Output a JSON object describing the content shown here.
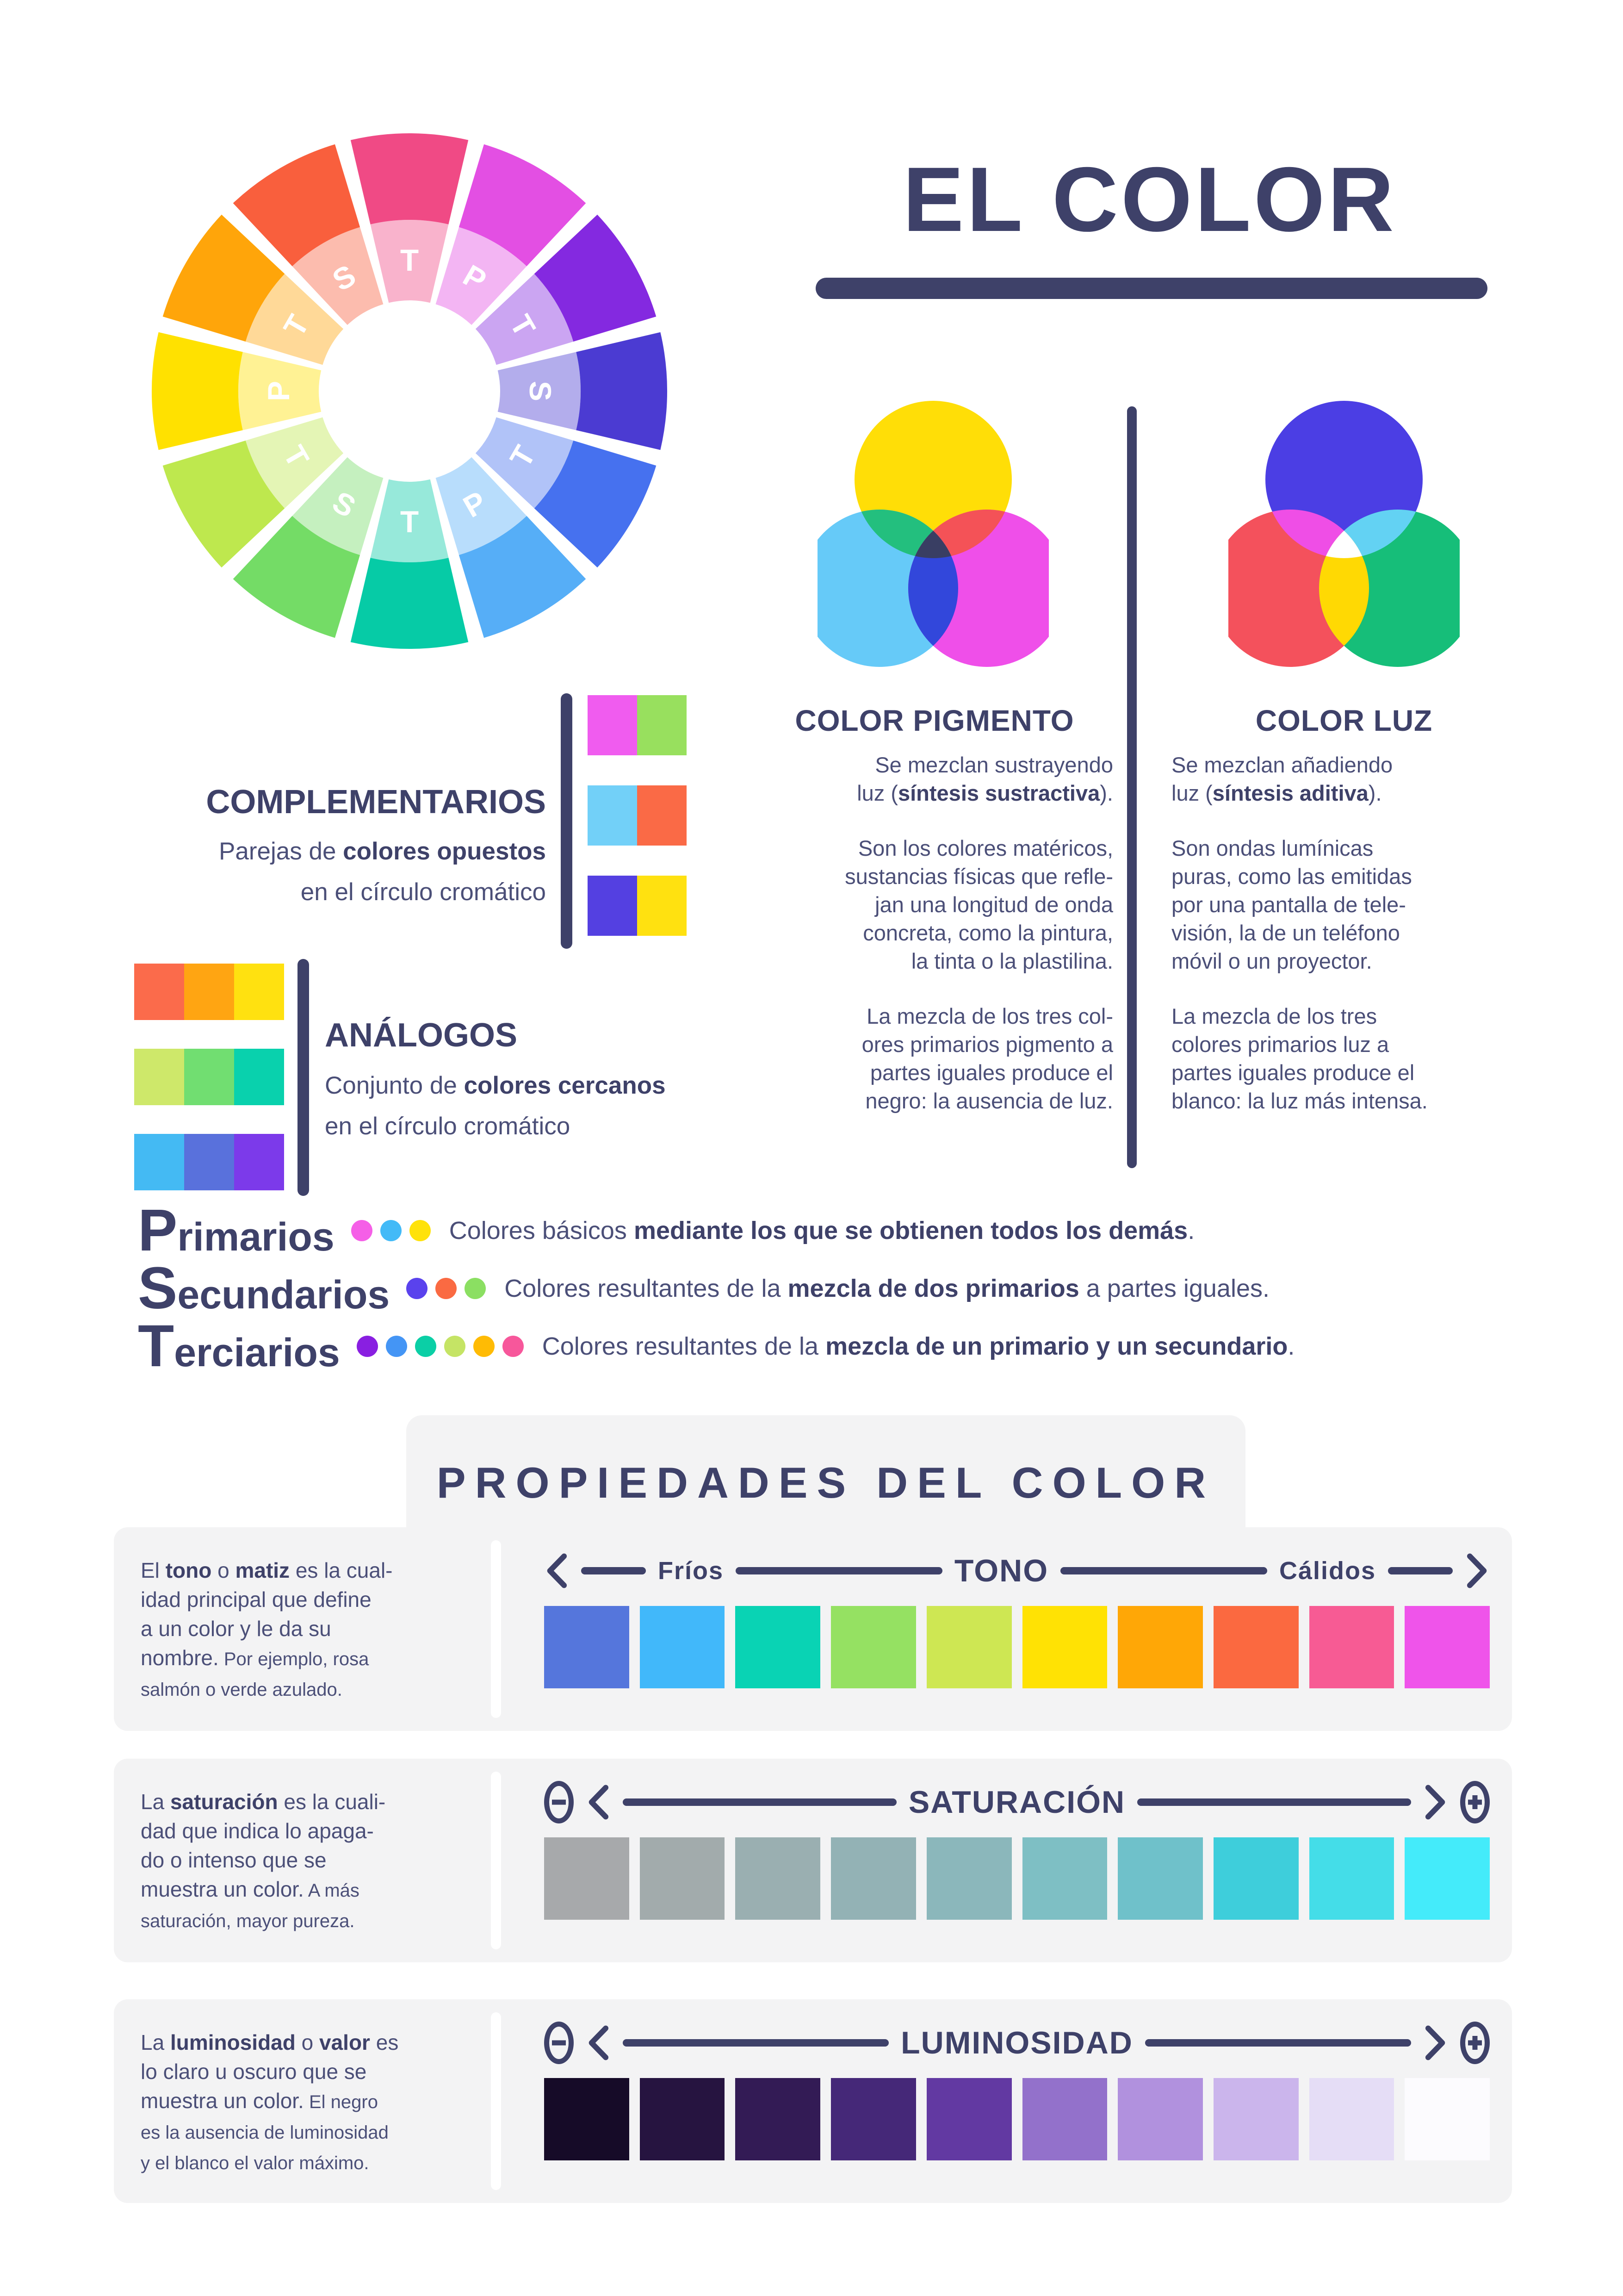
{
  "page": {
    "bg": "#FFFFFF",
    "navy": "#3E4169",
    "body_text": "#4B4F78",
    "panel_bg": "#F3F3F4"
  },
  "header": {
    "title": "EL COLOR"
  },
  "wheel": {
    "segments": [
      {
        "letter": "T",
        "color": "#F04A85"
      },
      {
        "letter": "P",
        "color": "#E34FE3"
      },
      {
        "letter": "T",
        "color": "#8429E0"
      },
      {
        "letter": "S",
        "color": "#4B3BD2"
      },
      {
        "letter": "T",
        "color": "#4671EF"
      },
      {
        "letter": "P",
        "color": "#56AEF7"
      },
      {
        "letter": "T",
        "color": "#06CBA6"
      },
      {
        "letter": "S",
        "color": "#74DC66"
      },
      {
        "letter": "T",
        "color": "#BEE84E"
      },
      {
        "letter": "P",
        "color": "#FFE100"
      },
      {
        "letter": "T",
        "color": "#FFA50A"
      },
      {
        "letter": "S",
        "color": "#F95F3D"
      }
    ]
  },
  "mixing": {
    "pigment": {
      "title": "COLOR PIGMENTO",
      "circles": {
        "top": "#FFDE07",
        "left": "#66CAF8",
        "right": "#EF4FE9"
      },
      "overlaps": {
        "top_left": "#23BF7E",
        "top_right": "#F45257",
        "left_right": "#3247DB",
        "center": "#393E63"
      },
      "paragraphs": [
        [
          [
            [
              "Se mezclan sustrayendo",
              ""
            ]
          ],
          [
            [
              "luz (",
              ""
            ],
            [
              "síntesis sustractiva",
              "b"
            ],
            [
              ").",
              ""
            ]
          ]
        ],
        [
          [
            [
              "Son los colores matéricos,",
              ""
            ]
          ],
          [
            [
              "sustancias físicas que refle-",
              ""
            ]
          ],
          [
            [
              "jan una longitud de onda",
              ""
            ]
          ],
          [
            [
              "concreta, como la pintura,",
              ""
            ]
          ],
          [
            [
              "la tinta o la plastilina.",
              ""
            ]
          ]
        ],
        [
          [
            [
              "La mezcla de los tres col-",
              ""
            ]
          ],
          [
            [
              "ores primarios pigmento a",
              ""
            ]
          ],
          [
            [
              "partes iguales produce el",
              ""
            ]
          ],
          [
            [
              "negro: la ausencia de luz.",
              ""
            ]
          ]
        ]
      ]
    },
    "light": {
      "title": "COLOR LUZ",
      "circles": {
        "top": "#4B3EE4",
        "left": "#F4515C",
        "right": "#16BE79"
      },
      "overlaps": {
        "top_left": "#EF4EE6",
        "top_right": "#63D2F3",
        "left_right": "#FFD903",
        "center": "#FFFFFF"
      },
      "paragraphs": [
        [
          [
            [
              "Se mezclan añadiendo",
              ""
            ]
          ],
          [
            [
              "luz (",
              ""
            ],
            [
              "síntesis aditiva",
              "b"
            ],
            [
              ").",
              ""
            ]
          ]
        ],
        [
          [
            [
              "Son ondas lumínicas",
              ""
            ]
          ],
          [
            [
              "puras, como las emitidas",
              ""
            ]
          ],
          [
            [
              "por una pantalla de tele-",
              ""
            ]
          ],
          [
            [
              "visión, la de un teléfono",
              ""
            ]
          ],
          [
            [
              "móvil o un proyector.",
              ""
            ]
          ]
        ],
        [
          [
            [
              "La mezcla de los tres",
              ""
            ]
          ],
          [
            [
              "colores primarios luz a",
              ""
            ]
          ],
          [
            [
              "partes iguales produce el",
              ""
            ]
          ],
          [
            [
              "blanco: la luz más intensa.",
              ""
            ]
          ]
        ]
      ]
    }
  },
  "complementarios": {
    "title": "COMPLEMENTARIOS",
    "desc": [
      [
        [
          [
            "Parejas de ",
            ""
          ],
          [
            "colores opuestos",
            "b"
          ]
        ],
        [
          [
            "en el círculo cromático",
            ""
          ]
        ]
      ]
    ],
    "pairs": [
      [
        "#F05CEF",
        "#98E05E"
      ],
      [
        "#72D0F8",
        "#FA6A46"
      ],
      [
        "#5440E1",
        "#FFE110"
      ]
    ]
  },
  "analogos": {
    "title": "ANÁLOGOS",
    "desc": [
      [
        [
          [
            "Conjunto de ",
            ""
          ],
          [
            "colores cercanos",
            "b"
          ]
        ],
        [
          [
            "en el círculo cromático",
            ""
          ]
        ]
      ]
    ],
    "triples": [
      [
        "#FB6B4B",
        "#FFA512",
        "#FFE110"
      ],
      [
        "#CEE86A",
        "#71DE71",
        "#09D1AD"
      ],
      [
        "#44BAF3",
        "#5971DC",
        "#7C3AEA"
      ]
    ]
  },
  "levels": [
    {
      "label": "Primarios",
      "dots": [
        "#F55FE7",
        "#43BAF7",
        "#FFE20A"
      ],
      "desc": [
        [
          [
            [
              "Colores básicos ",
              ""
            ],
            [
              "mediante los que se obtienen todos los demás",
              "b"
            ],
            [
              ".",
              ""
            ]
          ]
        ]
      ]
    },
    {
      "label": "Secundarios",
      "dots": [
        "#5A42ED",
        "#FA6A42",
        "#8BDF62"
      ],
      "desc": [
        [
          [
            [
              "Colores resultantes de la ",
              ""
            ],
            [
              "mezcla de dos primarios",
              "b"
            ],
            [
              " a partes iguales.",
              ""
            ]
          ]
        ]
      ]
    },
    {
      "label": "Terciarios",
      "dots": [
        "#891FE1",
        "#4495F5",
        "#0BCFA6",
        "#C5E465",
        "#FFBB04",
        "#F7579B"
      ],
      "desc": [
        [
          [
            [
              "Colores resultantes de la ",
              ""
            ],
            [
              "mezcla de un primario y un secundario",
              "b"
            ],
            [
              ".",
              ""
            ]
          ]
        ]
      ]
    }
  ],
  "properties": {
    "header": "PROPIEDADES DEL COLOR",
    "rows": [
      {
        "center_label": "TONO",
        "left_label": "Fríos",
        "right_label": "Cálidos",
        "text": [
          [
            [
              [
                "El ",
                ""
              ],
              [
                "tono",
                "b"
              ],
              [
                " o ",
                ""
              ],
              [
                "matiz",
                "b"
              ],
              [
                " es la cual-",
                ""
              ]
            ],
            [
              [
                "idad principal que define",
                ""
              ]
            ],
            [
              [
                "a un color y le da su",
                ""
              ]
            ],
            [
              [
                "nombre.",
                ""
              ],
              [
                " Por ejemplo, rosa",
                "s"
              ]
            ],
            [
              [
                "salmón o verde azulado.",
                "s"
              ]
            ]
          ]
        ],
        "swatches": [
          "#5576DC",
          "#41B8FA",
          "#09D3B4",
          "#95E162",
          "#CEE753",
          "#FFE204",
          "#FFA706",
          "#FB6940",
          "#F75B94",
          "#EF54EA"
        ]
      },
      {
        "center_label": "SATURACIÓN",
        "text": [
          [
            [
              [
                "La ",
                ""
              ],
              [
                "saturación",
                "b"
              ],
              [
                " es la cuali-",
                ""
              ]
            ],
            [
              [
                "dad que indica lo apaga-",
                ""
              ]
            ],
            [
              [
                "do o intenso que se",
                ""
              ]
            ],
            [
              [
                "muestra un color.",
                ""
              ],
              [
                " A más",
                "s"
              ]
            ],
            [
              [
                "saturación, mayor pureza.",
                "s"
              ]
            ]
          ]
        ],
        "swatches": [
          "#A7A9AB",
          "#A2ABAC",
          "#9AAFB1",
          "#93B2B5",
          "#8BB7BB",
          "#7EBFC4",
          "#6FC1CA",
          "#3ECEDB",
          "#44DDE8",
          "#44EBFA"
        ]
      },
      {
        "center_label": "LUMINOSIDAD",
        "text": [
          [
            [
              [
                "La ",
                ""
              ],
              [
                "luminosidad",
                "b"
              ],
              [
                " o ",
                ""
              ],
              [
                "valor",
                "b"
              ],
              [
                " es",
                ""
              ]
            ],
            [
              [
                "lo claro u oscuro que se",
                ""
              ]
            ],
            [
              [
                "muestra un color.",
                ""
              ],
              [
                " El negro",
                "s"
              ]
            ],
            [
              [
                "es la ausencia de luminosidad",
                "s"
              ]
            ],
            [
              [
                "y el blanco el valor máximo.",
                "s"
              ]
            ]
          ]
        ],
        "swatches": [
          "#160B28",
          "#261440",
          "#331B55",
          "#452878",
          "#6239A2",
          "#9371CB",
          "#B191DE",
          "#CBB5EC",
          "#E5DDF6",
          "#FCFBFE"
        ]
      }
    ]
  }
}
